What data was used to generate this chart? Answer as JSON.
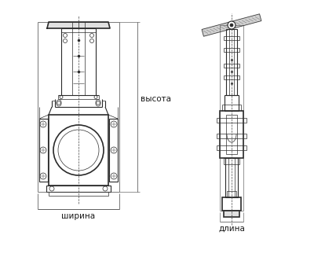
{
  "bg_color": "#ffffff",
  "line_color": "#2a2a2a",
  "dim_color": "#444444",
  "label_color": "#1a1a1a",
  "labels": {
    "height": "высота",
    "width": "ширина",
    "length": "длина"
  },
  "font_size": 7.5,
  "figure_width": 4.0,
  "figure_height": 3.46,
  "dpi": 100
}
